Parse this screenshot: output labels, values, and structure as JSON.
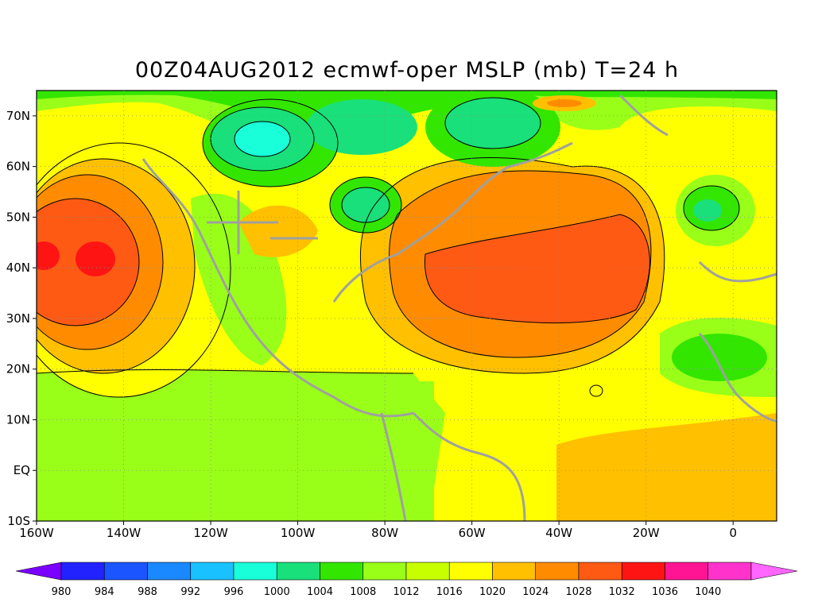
{
  "title": "00Z04AUG2012 ecmwf-oper MSLP (mb) T=24 h",
  "axes": {
    "lon_ticks": [
      "160W",
      "140W",
      "120W",
      "100W",
      "80W",
      "60W",
      "40W",
      "20W",
      "0"
    ],
    "lat_ticks": [
      "70N",
      "60N",
      "50N",
      "40N",
      "30N",
      "20N",
      "10N",
      "EQ",
      "10S"
    ]
  },
  "colorbar": {
    "levels": [
      "980",
      "984",
      "988",
      "992",
      "996",
      "1000",
      "1004",
      "1008",
      "1012",
      "1016",
      "1020",
      "1024",
      "1028",
      "1032",
      "1036",
      "1040"
    ],
    "colors": [
      "#7a00ff",
      "#2222ff",
      "#1a55ff",
      "#1a88ff",
      "#19c2ff",
      "#19ffd9",
      "#19e07a",
      "#33e600",
      "#99ff19",
      "#c8ff00",
      "#ffff00",
      "#ffc000",
      "#ff8c00",
      "#ff5a14",
      "#ff1414",
      "#ff1493",
      "#ff33cc",
      "#ff66ff"
    ]
  },
  "chart_data": {
    "type": "heatmap",
    "variable": "MSLP (mb)",
    "title": "00Z04AUG2012 ecmwf-oper MSLP (mb) T=24 h",
    "xlim": [
      -160,
      10
    ],
    "ylim": [
      -10,
      75
    ],
    "contour_levels": [
      980,
      984,
      988,
      992,
      996,
      1000,
      1004,
      1008,
      1012,
      1016,
      1020,
      1024,
      1028,
      1032,
      1036,
      1040
    ],
    "pressure_systems": [
      {
        "type": "high",
        "lon": -148,
        "lat": 42,
        "value": 1030
      },
      {
        "type": "high",
        "lon": -45,
        "lat": 38,
        "value": 1027
      },
      {
        "type": "high",
        "lon": -30,
        "lat": 42,
        "value": 1027
      },
      {
        "type": "low",
        "lon": -112,
        "lat": 65,
        "value": 996
      },
      {
        "type": "low",
        "lon": -86,
        "lat": 52,
        "value": 998
      },
      {
        "type": "low",
        "lon": -58,
        "lat": 68,
        "value": 1001
      },
      {
        "type": "low",
        "lon": -8,
        "lat": 52,
        "value": 1006
      },
      {
        "type": "low",
        "lon": -10,
        "lat": 22,
        "value": 1007
      }
    ]
  }
}
